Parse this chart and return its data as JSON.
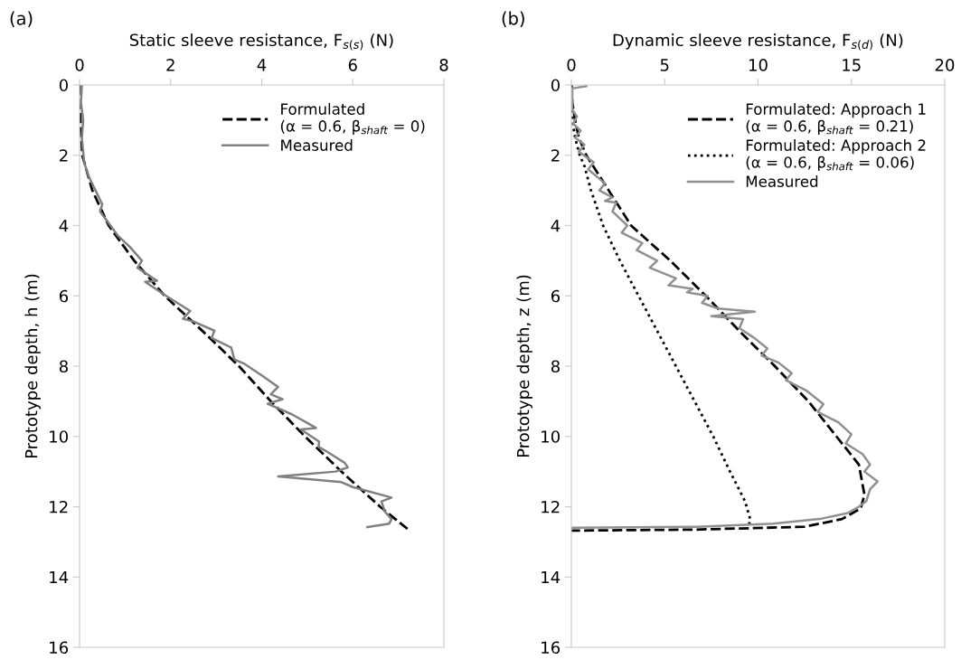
{
  "chart_data": [
    {
      "type": "line",
      "xlabel": "Static sleeve resistance, F$_{s(s)}$ (N)",
      "ylabel": "Prototype depth, h (m)",
      "annotations": [
        "(a)"
      ],
      "xlim": [
        0,
        8
      ],
      "xticks": [
        0,
        2,
        4,
        6,
        8
      ],
      "ylim": [
        16,
        0
      ],
      "yticks": [
        0,
        2,
        4,
        6,
        8,
        10,
        12,
        14,
        16
      ],
      "grid": false,
      "legend": "top right",
      "series": [
        {
          "name": "Formulated\n(α = 0.6, β$_{shaft}$ = 0)",
          "color": "#000000",
          "line_style": "dashed",
          "x": [
            0.0,
            0.02,
            0.06,
            0.28,
            0.64,
            1.2,
            1.87,
            2.7,
            3.5,
            4.2,
            4.95,
            5.75,
            6.6,
            7.2
          ],
          "values": [
            0,
            1,
            2,
            3,
            4,
            5,
            6,
            7,
            8,
            9,
            10,
            11,
            12,
            12.63
          ]
        },
        {
          "name": "Measured",
          "color": "#808080",
          "line_style": "solid",
          "x": [
            0.05,
            0.03,
            0.08,
            0.05,
            0.08,
            0.1,
            0.2,
            0.35,
            0.5,
            0.45,
            0.62,
            0.85,
            1.1,
            1.37,
            1.27,
            1.7,
            1.44,
            1.9,
            2.43,
            2.27,
            2.5,
            2.96,
            2.9,
            3.33,
            3.4,
            3.63,
            4.03,
            4.26,
            4.36,
            4.2,
            4.46,
            4.13,
            4.66,
            5.02,
            5.19,
            4.86,
            5.26,
            5.25,
            5.39,
            5.82,
            5.89,
            5.62,
            4.36,
            5.75,
            6.0,
            6.85,
            6.63,
            6.7,
            6.85,
            6.8,
            6.32
          ],
          "values": [
            0,
            0.5,
            1.0,
            1.5,
            1.9,
            2.2,
            2.6,
            3.0,
            3.4,
            3.6,
            3.9,
            4.3,
            4.6,
            5.0,
            5.2,
            5.57,
            5.6,
            6.0,
            6.43,
            6.65,
            6.73,
            6.99,
            7.2,
            7.47,
            7.81,
            7.94,
            8.29,
            8.5,
            8.59,
            8.8,
            8.94,
            9.07,
            9.37,
            9.63,
            9.76,
            9.8,
            10.15,
            10.3,
            10.4,
            10.75,
            10.88,
            11.0,
            11.14,
            11.3,
            11.44,
            11.74,
            11.85,
            12.13,
            12.35,
            12.48,
            12.58
          ]
        }
      ]
    },
    {
      "type": "line",
      "xlabel": "Dynamic sleeve resistance, F$_{s(d)}$ (N)",
      "ylabel": "Prototype depth, z (m)",
      "annotations": [
        "(b)"
      ],
      "xlim": [
        0,
        20
      ],
      "xticks": [
        0,
        5,
        10,
        15,
        20
      ],
      "ylim": [
        16,
        0
      ],
      "yticks": [
        0,
        2,
        4,
        6,
        8,
        10,
        12,
        14,
        16
      ],
      "grid": false,
      "legend": "top right",
      "series": [
        {
          "name": "Formulated: Approach 1\n(α = 0.6, β$_{shaft}$ = 0.21)",
          "color": "#000000",
          "line_style": "dashed",
          "x": [
            0,
            0.05,
            0.2,
            0.4,
            0.8,
            1.4,
            2.0,
            2.6,
            3.2,
            5.3,
            7.2,
            9.0,
            10.9,
            12.7,
            14.2,
            15.4,
            15.7,
            15.5,
            14.5,
            12.5,
            6.7,
            0
          ],
          "values": [
            0,
            0.5,
            1,
            1.5,
            2,
            2.5,
            3,
            3.5,
            4,
            5,
            6,
            7,
            8,
            9,
            10,
            10.8,
            11.66,
            12.05,
            12.35,
            12.57,
            12.65,
            12.68
          ]
        },
        {
          "name": "Formulated: Approach 2\n(α = 0.6, β$_{shaft}$ = 0.06)",
          "color": "#000000",
          "line_style": "dotted",
          "x": [
            0,
            0.05,
            0.2,
            0.45,
            0.71,
            1.05,
            1.7,
            2.6,
            3.6,
            4.6,
            5.6,
            6.6,
            7.6,
            8.5,
            9.3,
            9.58,
            9.5
          ],
          "values": [
            0,
            1,
            1.5,
            2,
            2.32,
            3,
            4,
            5,
            6,
            7,
            8,
            9,
            10,
            11,
            11.84,
            12.35,
            12.57
          ]
        },
        {
          "name": "Measured",
          "color": "#909090",
          "line_style": "solid",
          "x": [
            0.8,
            0.05,
            0.05,
            0.3,
            0.1,
            0.5,
            0.2,
            0.7,
            0.4,
            1.2,
            0.9,
            1.8,
            1.5,
            2.2,
            1.8,
            2.4,
            2.2,
            3.0,
            2.7,
            3.8,
            3.5,
            4.6,
            4.2,
            5.6,
            5.2,
            6.5,
            6.2,
            7.3,
            7.0,
            7.85,
            9.83,
            7.5,
            9.2,
            9.0,
            9.8,
            10.5,
            10.2,
            11.1,
            11.8,
            11.5,
            12.6,
            13.5,
            13.2,
            14.3,
            15.0,
            14.7,
            15.6,
            16.0,
            15.7,
            16.4,
            16.0,
            15.8,
            15.4,
            14.8,
            13.3,
            10.8,
            6.7,
            0.05
          ],
          "values": [
            0.03,
            0.1,
            0.7,
            0.9,
            1.1,
            1.3,
            1.5,
            1.7,
            1.9,
            2.2,
            2.4,
            2.8,
            3.0,
            3.2,
            3.3,
            3.35,
            3.6,
            4.0,
            4.2,
            4.5,
            4.7,
            5.0,
            5.2,
            5.5,
            5.7,
            5.8,
            5.9,
            6.0,
            6.2,
            6.36,
            6.45,
            6.58,
            6.66,
            6.92,
            7.2,
            7.5,
            7.7,
            7.9,
            8.2,
            8.4,
            8.7,
            9.08,
            9.3,
            9.6,
            9.94,
            10.2,
            10.5,
            10.8,
            11.0,
            11.28,
            11.5,
            11.84,
            12.0,
            12.18,
            12.35,
            12.48,
            12.57,
            12.6
          ]
        }
      ]
    }
  ]
}
